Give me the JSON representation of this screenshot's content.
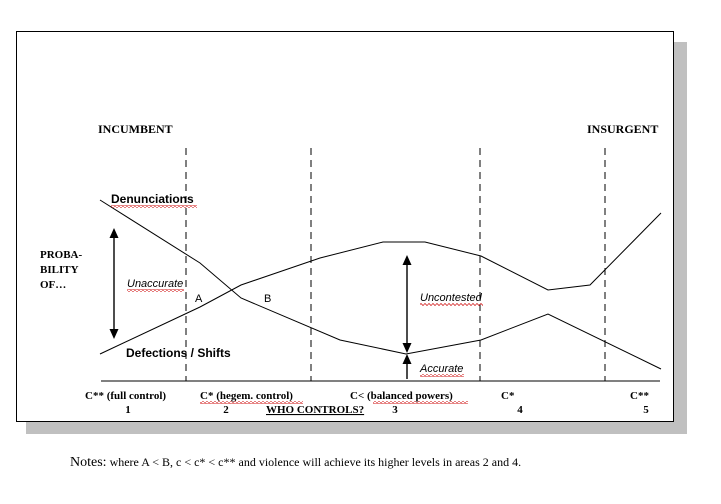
{
  "header": {
    "left_label": "INCUMBENT",
    "right_label": "INSURGENT"
  },
  "y_axis_label": [
    "PROBA-",
    "BILITY",
    "OF…"
  ],
  "curves": {
    "denunciations_label": "Denunciations",
    "defections_label": "Defections / Shifts"
  },
  "annotations": {
    "unaccurate": "Unaccurate",
    "point_a": "A",
    "point_b": "B",
    "uncontested": "Uncontested",
    "accurate": "Accurate"
  },
  "x_axis": {
    "title": "WHO CONTROLS?",
    "zones": [
      {
        "label": "C** (full control)",
        "number": "1"
      },
      {
        "label": "C* (hegem. control)",
        "number": "2"
      },
      {
        "label": "C<  (balanced powers)",
        "number": "3"
      },
      {
        "label": "C*",
        "number": "4"
      },
      {
        "label": "C**",
        "number": "5"
      }
    ]
  },
  "notes": {
    "lead": "Notes:",
    "text": "where A < B, c < c* < c** and violence will achieve its higher levels in areas 2 and 4."
  }
}
